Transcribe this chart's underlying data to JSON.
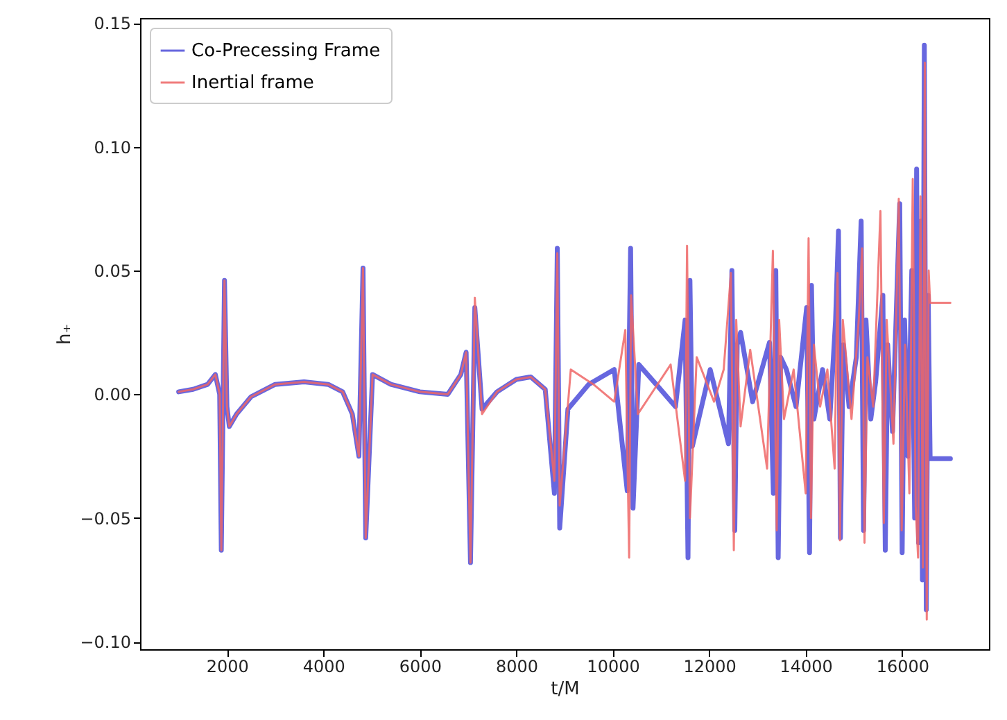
{
  "chart_data": {
    "type": "line",
    "xlabel": "t/M",
    "ylabel": "h₊",
    "xlim": [
      200,
      17800
    ],
    "ylim": [
      -0.103,
      0.152
    ],
    "xticks": [
      2000,
      4000,
      6000,
      8000,
      10000,
      12000,
      14000,
      16000
    ],
    "yticks": [
      {
        "value": -0.1,
        "label": "−0.10"
      },
      {
        "value": -0.05,
        "label": "−0.05"
      },
      {
        "value": 0,
        "label": "0.00"
      },
      {
        "value": 0.05,
        "label": "0.05"
      },
      {
        "value": 0.1,
        "label": "0.10"
      },
      {
        "value": 0.15,
        "label": "0.15"
      }
    ],
    "grid": false,
    "legend": "top left",
    "line_style": "solid",
    "marker": "none",
    "series": [
      {
        "name": "Co-Precessing Frame",
        "color": "#4c4cd9",
        "x": [
          1000,
          1300,
          1600,
          1760,
          1850,
          1884,
          1950,
          2000,
          2050,
          2200,
          2500,
          3000,
          3600,
          4100,
          4400,
          4600,
          4737,
          4822,
          4878,
          5020,
          5400,
          6000,
          6580,
          6850,
          6960,
          7050,
          7140,
          7290,
          7600,
          8000,
          8300,
          8600,
          8790,
          8850,
          8900,
          9070,
          9500,
          10030,
          10300,
          10370,
          10420,
          10540,
          10900,
          11300,
          11500,
          11560,
          11600,
          11650,
          12020,
          12400,
          12470,
          12530,
          12580,
          12650,
          12900,
          13250,
          13330,
          13380,
          13430,
          13480,
          13600,
          13800,
          14020,
          14080,
          14120,
          14170,
          14350,
          14500,
          14620,
          14680,
          14720,
          14780,
          14900,
          15050,
          15150,
          15200,
          15250,
          15350,
          15450,
          15600,
          15650,
          15700,
          15800,
          15950,
          16000,
          16050,
          16120,
          16200,
          16260,
          16300,
          16340,
          16390,
          16420,
          16460,
          16500,
          16540,
          16580,
          17000
        ],
        "values": [
          0.001,
          0.002,
          0.004,
          0.008,
          0.0,
          -0.063,
          0.046,
          -0.005,
          -0.013,
          -0.008,
          -0.001,
          0.004,
          0.005,
          0.004,
          0.001,
          -0.008,
          -0.025,
          0.051,
          -0.058,
          0.008,
          0.004,
          0.001,
          0.0,
          0.008,
          0.017,
          -0.068,
          0.035,
          -0.006,
          0.001,
          0.006,
          0.007,
          0.002,
          -0.04,
          0.059,
          -0.054,
          -0.006,
          0.004,
          0.01,
          -0.039,
          0.059,
          -0.046,
          0.012,
          0.004,
          -0.005,
          0.03,
          -0.066,
          0.046,
          -0.021,
          0.01,
          -0.02,
          0.05,
          -0.055,
          0.02,
          0.025,
          -0.003,
          0.021,
          -0.04,
          0.05,
          -0.066,
          0.015,
          0.01,
          -0.005,
          0.035,
          -0.064,
          0.044,
          -0.01,
          0.01,
          -0.01,
          0.03,
          0.066,
          -0.058,
          0.02,
          -0.005,
          0.015,
          0.07,
          -0.055,
          0.03,
          -0.01,
          0.005,
          0.04,
          -0.063,
          0.02,
          -0.015,
          0.077,
          -0.064,
          0.03,
          -0.025,
          0.05,
          -0.05,
          0.091,
          -0.06,
          0.07,
          -0.075,
          0.141,
          -0.087,
          0.04,
          -0.026,
          -0.026
        ]
      },
      {
        "name": "Inertial frame",
        "color": "#ee6666",
        "x": [
          1000,
          1300,
          1600,
          1760,
          1850,
          1884,
          1950,
          2000,
          2050,
          2200,
          2500,
          3000,
          3600,
          4100,
          4400,
          4600,
          4737,
          4822,
          4878,
          5020,
          5400,
          6000,
          6580,
          6850,
          6960,
          7050,
          7140,
          7290,
          7600,
          8000,
          8300,
          8600,
          8790,
          8850,
          8900,
          9130,
          9600,
          10030,
          10260,
          10340,
          10380,
          10520,
          11200,
          11500,
          11540,
          11600,
          11740,
          12100,
          12300,
          12450,
          12510,
          12560,
          12650,
          12850,
          13200,
          13320,
          13400,
          13450,
          13550,
          13750,
          14000,
          14060,
          14110,
          14170,
          14300,
          14450,
          14600,
          14660,
          14710,
          14770,
          14950,
          15100,
          15170,
          15220,
          15280,
          15400,
          15550,
          15620,
          15680,
          15820,
          15930,
          15990,
          16060,
          16150,
          16220,
          16280,
          16330,
          16380,
          16430,
          16470,
          16510,
          16550,
          16580,
          17000
        ],
        "values": [
          0.001,
          0.002,
          0.004,
          0.008,
          0.0,
          -0.063,
          0.046,
          -0.005,
          -0.013,
          -0.008,
          -0.001,
          0.004,
          0.005,
          0.004,
          0.001,
          -0.008,
          -0.025,
          0.051,
          -0.058,
          0.008,
          0.004,
          0.001,
          0.0,
          0.008,
          0.017,
          -0.068,
          0.039,
          -0.008,
          0.001,
          0.006,
          0.007,
          0.002,
          -0.035,
          0.057,
          -0.045,
          0.01,
          0.004,
          -0.003,
          0.026,
          -0.066,
          0.04,
          -0.008,
          0.012,
          -0.035,
          0.06,
          -0.05,
          0.015,
          -0.003,
          0.01,
          0.049,
          -0.063,
          0.03,
          -0.013,
          0.018,
          -0.03,
          0.058,
          -0.055,
          0.03,
          -0.01,
          0.01,
          -0.04,
          0.063,
          -0.05,
          0.02,
          -0.005,
          0.01,
          -0.03,
          0.049,
          -0.059,
          0.03,
          -0.01,
          0.03,
          0.059,
          -0.06,
          0.015,
          -0.005,
          0.074,
          -0.052,
          0.03,
          -0.02,
          0.079,
          -0.055,
          0.02,
          -0.04,
          0.087,
          -0.045,
          -0.066,
          0.08,
          -0.07,
          0.134,
          -0.091,
          0.05,
          0.037,
          0.037
        ]
      }
    ]
  }
}
